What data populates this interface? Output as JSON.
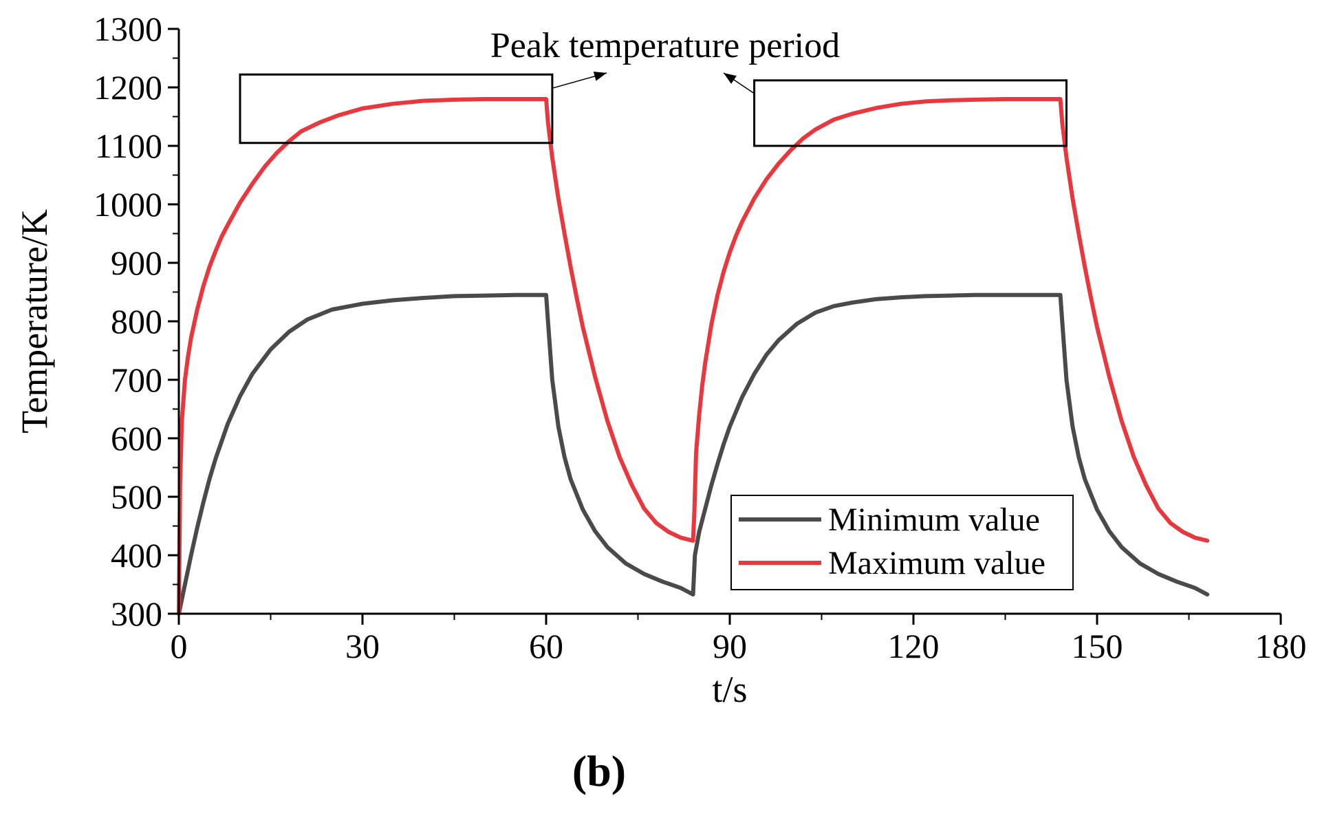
{
  "chart_data": {
    "type": "line",
    "xlabel": "t/s",
    "ylabel": "Temperature/K",
    "xlim": [
      0,
      180
    ],
    "ylim": [
      300,
      1300
    ],
    "xticks": [
      0,
      30,
      60,
      90,
      120,
      150,
      180
    ],
    "yticks": [
      300,
      400,
      500,
      600,
      700,
      800,
      900,
      1000,
      1100,
      1200,
      1300
    ],
    "grid": false,
    "legend_position": "bottom-right",
    "annotation": {
      "text": "Peak temperature period",
      "boxes": [
        {
          "t_start": 10,
          "t_end": 61,
          "temp_low": 1105,
          "temp_high": 1222
        },
        {
          "t_start": 94,
          "t_end": 145,
          "temp_low": 1100,
          "temp_high": 1212
        }
      ]
    },
    "series": [
      {
        "name": "Minimum value",
        "color": "#4a4a4a",
        "x": [
          0,
          1,
          2,
          3,
          4,
          5,
          6,
          8,
          10,
          12,
          15,
          18,
          21,
          25,
          30,
          35,
          40,
          45,
          50,
          55,
          60,
          60.3,
          61,
          62,
          63,
          64,
          66,
          68,
          70,
          73,
          76,
          79,
          82,
          84,
          84.3,
          85,
          86,
          87,
          88,
          89,
          90,
          92,
          94,
          96,
          98,
          101,
          104,
          107,
          110,
          114,
          118,
          122,
          126,
          130,
          135,
          140,
          144,
          144.3,
          145,
          146,
          147,
          148,
          150,
          152,
          154,
          157,
          160,
          163,
          166,
          168
        ],
        "values": [
          300,
          350,
          400,
          447,
          490,
          530,
          565,
          625,
          672,
          710,
          752,
          782,
          803,
          820,
          830,
          836,
          840,
          843,
          844,
          845,
          845,
          800,
          700,
          620,
          568,
          530,
          478,
          441,
          414,
          386,
          368,
          355,
          344,
          333,
          400,
          440,
          480,
          520,
          556,
          590,
          620,
          670,
          710,
          743,
          768,
          796,
          815,
          826,
          832,
          838,
          841,
          843,
          844,
          845,
          845,
          845,
          845,
          800,
          700,
          620,
          568,
          530,
          478,
          441,
          414,
          386,
          368,
          355,
          344,
          333
        ]
      },
      {
        "name": "Maximum value",
        "color": "#e8383d",
        "x": [
          0,
          0.2,
          0.5,
          1,
          1.5,
          2,
          3,
          4,
          5,
          6,
          7,
          8,
          10,
          12,
          14,
          16,
          18,
          20,
          23,
          26,
          30,
          35,
          40,
          45,
          50,
          55,
          60,
          60.3,
          61,
          62,
          63,
          64,
          65,
          66,
          68,
          70,
          72,
          74,
          76,
          78,
          80,
          82,
          84,
          84.2,
          84.5,
          85,
          85.5,
          86,
          87,
          88,
          89,
          90,
          91,
          92,
          94,
          96,
          98,
          100,
          102,
          104,
          107,
          110,
          114,
          118,
          122,
          126,
          130,
          135,
          140,
          144,
          144.3,
          145,
          146,
          147,
          148,
          149,
          150,
          152,
          154,
          156,
          158,
          160,
          162,
          164,
          166,
          168
        ],
        "values": [
          300,
          520,
          630,
          700,
          740,
          772,
          820,
          860,
          893,
          920,
          945,
          965,
          1003,
          1035,
          1064,
          1088,
          1108,
          1125,
          1140,
          1152,
          1164,
          1172,
          1177,
          1179,
          1180,
          1180,
          1180,
          1140,
          1080,
          1010,
          950,
          893,
          840,
          790,
          705,
          630,
          568,
          520,
          480,
          455,
          440,
          430,
          425,
          470,
          575,
          640,
          690,
          730,
          795,
          845,
          885,
          918,
          946,
          970,
          1010,
          1043,
          1070,
          1093,
          1113,
          1128,
          1145,
          1155,
          1165,
          1172,
          1176,
          1178,
          1179,
          1180,
          1180,
          1180,
          1140,
          1080,
          1010,
          950,
          893,
          840,
          790,
          705,
          630,
          568,
          520,
          480,
          455,
          440,
          430,
          425
        ]
      }
    ]
  },
  "panel_label": "(b)"
}
